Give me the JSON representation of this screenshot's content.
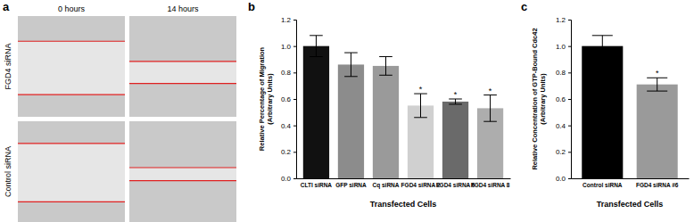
{
  "figure_a": {
    "panel": "a",
    "columns": [
      "0 hours",
      "14 hours"
    ],
    "rows": [
      "FGD4 siRNA",
      "Control siRNA"
    ]
  },
  "chart_data": [
    {
      "type": "bar",
      "panel": "b",
      "y_label": [
        "Relative Percentage of Migration",
        "(Arbitrary Units)"
      ],
      "x_label": "Transfected Cells",
      "categories": [
        "CLTI siRNA",
        "GFP siRNA",
        "Cq siRNA",
        "FGD4 siRNA 2",
        "FGD4 siRNA 6",
        "FGD4 siRNA 8"
      ],
      "values": [
        1.0,
        0.86,
        0.85,
        0.55,
        0.58,
        0.53
      ],
      "errors": [
        0.08,
        0.09,
        0.07,
        0.09,
        0.02,
        0.1
      ],
      "significance": [
        null,
        null,
        null,
        "*",
        "*",
        "*"
      ],
      "colors": [
        "#111111",
        "#8c8c8c",
        "#9a9a9a",
        "#d0d0d0",
        "#6a6a6a",
        "#adadad"
      ],
      "ylim": [
        0,
        1.2
      ],
      "yticks": [
        {
          "value": 0,
          "label": "0.0"
        },
        0.2,
        0.4,
        0.6,
        0.8,
        {
          "value": 1,
          "label": "1.0"
        },
        1.2
      ],
      "grid": false
    },
    {
      "type": "bar",
      "panel": "c",
      "y_label": [
        "Relative Concentration of GTP-Bound Cdc42",
        "(Arbitrary Units)"
      ],
      "x_label": "Transfected Cells",
      "categories": [
        "Control siRNA",
        "FGD4 siRNA #6"
      ],
      "values": [
        1.0,
        0.71
      ],
      "errors": [
        0.08,
        0.05
      ],
      "significance": [
        null,
        "*"
      ],
      "colors": [
        "#000000",
        "#9a9a9a"
      ],
      "ylim": [
        0,
        1.2
      ],
      "yticks": [
        {
          "value": 0,
          "label": "0.0"
        },
        0.2,
        0.4,
        0.6,
        0.8,
        {
          "value": 1,
          "label": "1.0"
        },
        1.2
      ],
      "grid": false
    }
  ]
}
